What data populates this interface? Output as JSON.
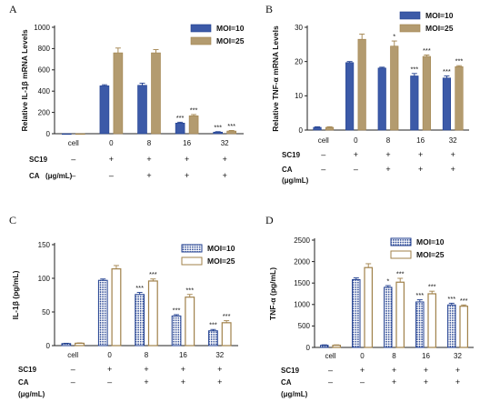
{
  "colors": {
    "moi10": "#3c5aa8",
    "moi25": "#b39b6f",
    "moi10_border": "#1f3e8f",
    "moi25_border": "#a0814a",
    "axis": "#222222"
  },
  "chart_data": [
    {
      "panel": "A",
      "type": "bar",
      "style": "solid",
      "ylabel": "Relative IL-1β mRNA Levels",
      "ylim": [
        0,
        1000
      ],
      "yticks": [
        0,
        200,
        400,
        600,
        800,
        1000
      ],
      "grid": false,
      "legend_position": "top-right",
      "categories": [
        "cell",
        "0",
        "8",
        "16",
        "32"
      ],
      "series": [
        {
          "name": "MOI=10",
          "values": [
            0,
            450,
            455,
            100,
            15
          ],
          "errors": [
            0,
            10,
            20,
            8,
            4
          ],
          "sig": [
            "",
            "",
            "",
            "***",
            "***"
          ]
        },
        {
          "name": "MOI=25",
          "values": [
            0,
            760,
            760,
            168,
            25
          ],
          "errors": [
            0,
            45,
            30,
            12,
            5
          ],
          "sig": [
            "",
            "",
            "",
            "***",
            "***"
          ]
        }
      ],
      "conditions": [
        {
          "label": "SC19",
          "marks": [
            "–",
            "+",
            "+",
            "+",
            "+"
          ]
        },
        {
          "label": "CA",
          "label2": "(μg/mL)",
          "marks": [
            "–",
            "–",
            "+",
            "+",
            "+"
          ]
        }
      ]
    },
    {
      "panel": "B",
      "type": "bar",
      "style": "solid",
      "ylabel": "Relative TNF-α mRNA Levels",
      "ylim": [
        0,
        30
      ],
      "yticks": [
        0,
        10,
        20,
        30
      ],
      "grid": false,
      "legend_position": "top-right",
      "categories": [
        "cell",
        "0",
        "8",
        "16",
        "32"
      ],
      "series": [
        {
          "name": "MOI=10",
          "values": [
            0.8,
            19.7,
            18.1,
            15.8,
            15.2
          ],
          "errors": [
            0.15,
            0.3,
            0.25,
            0.7,
            0.6
          ],
          "sig": [
            "",
            "",
            "",
            "***",
            "***"
          ]
        },
        {
          "name": "MOI=25",
          "values": [
            0.8,
            26.5,
            24.5,
            21.5,
            18.5
          ],
          "errors": [
            0.15,
            1.5,
            1.5,
            0.4,
            0.3
          ],
          "sig": [
            "",
            "",
            "*",
            "***",
            "***"
          ]
        }
      ],
      "conditions": [
        {
          "label": "SC19",
          "marks": [
            "–",
            "+",
            "+",
            "+",
            "+"
          ]
        },
        {
          "label": "CA",
          "label2": "(μg/mL)",
          "marks": [
            "–",
            "–",
            "+",
            "+",
            "+"
          ]
        }
      ]
    },
    {
      "panel": "C",
      "type": "bar",
      "style": "outlined",
      "ylabel": "IL-1β (pg/mL)",
      "ylim": [
        0,
        150
      ],
      "yticks": [
        0,
        50,
        100,
        150
      ],
      "grid": false,
      "legend_position": "top-right",
      "categories": [
        "cell",
        "0",
        "8",
        "16",
        "32"
      ],
      "series": [
        {
          "name": "MOI=10",
          "values": [
            3,
            97,
            76,
            44,
            22
          ],
          "errors": [
            0.5,
            2,
            3,
            2,
            2
          ],
          "sig": [
            "",
            "",
            "***",
            "***",
            "***"
          ]
        },
        {
          "name": "MOI=25",
          "values": [
            3.5,
            114,
            96,
            72,
            34
          ],
          "errors": [
            0.5,
            5,
            3,
            4,
            3
          ],
          "sig": [
            "",
            "",
            "***",
            "***",
            "***"
          ]
        }
      ],
      "conditions": [
        {
          "label": "SC19",
          "marks": [
            "–",
            "+",
            "+",
            "+",
            "+"
          ]
        },
        {
          "label": "CA",
          "label2": "(μg/mL)",
          "marks": [
            "–",
            "–",
            "+",
            "+",
            "+"
          ]
        }
      ]
    },
    {
      "panel": "D",
      "type": "bar",
      "style": "outlined",
      "ylabel": "TNF-α (pg/mL)",
      "ylim": [
        0,
        2500
      ],
      "yticks": [
        0,
        500,
        1000,
        1500,
        2000,
        2500
      ],
      "grid": false,
      "legend_position": "top-right",
      "categories": [
        "cell",
        "0",
        "8",
        "16",
        "32"
      ],
      "series": [
        {
          "name": "MOI=10",
          "values": [
            50,
            1580,
            1400,
            1060,
            990
          ],
          "errors": [
            10,
            40,
            40,
            50,
            40
          ],
          "sig": [
            "",
            "",
            "*",
            "***",
            "***"
          ]
        },
        {
          "name": "MOI=25",
          "values": [
            50,
            1860,
            1520,
            1250,
            960
          ],
          "errors": [
            10,
            90,
            90,
            60,
            30
          ],
          "sig": [
            "",
            "",
            "***",
            "***",
            "***"
          ]
        }
      ],
      "conditions": [
        {
          "label": "SC19",
          "marks": [
            "–",
            "+",
            "+",
            "+",
            "+"
          ]
        },
        {
          "label": "CA",
          "label2": "(μg/mL)",
          "marks": [
            "–",
            "–",
            "+",
            "+",
            "+"
          ]
        }
      ]
    }
  ]
}
